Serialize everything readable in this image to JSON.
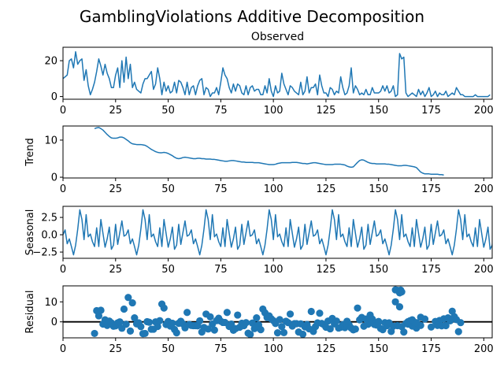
{
  "title": "GamblingViolations Additive Decomposition",
  "colors": {
    "series": "#1f77b4",
    "axes": "#000000",
    "background": "#ffffff"
  },
  "chart_data": [
    {
      "type": "line",
      "title": "Observed",
      "ylabel": "",
      "xlim": [
        0,
        204
      ],
      "ylim": [
        -1.5,
        27.5
      ],
      "xticks": [
        0,
        25,
        50,
        75,
        100,
        125,
        150,
        175,
        200
      ],
      "yticks": [
        0,
        20
      ],
      "series": [
        {
          "x_start": 0,
          "values": [
            10,
            11,
            12,
            20,
            21,
            16,
            25,
            18,
            20,
            21,
            9,
            15,
            6,
            1,
            4,
            8,
            14,
            21,
            17,
            12,
            18,
            13,
            10,
            5,
            5,
            12,
            16,
            5,
            20,
            8,
            22,
            10,
            18,
            5,
            8,
            4,
            3,
            2,
            7,
            10,
            10,
            12,
            14,
            4,
            7,
            16,
            10,
            1,
            8,
            3,
            6,
            2,
            3,
            8,
            2,
            9,
            8,
            5,
            1,
            8,
            1,
            5,
            6,
            1,
            6,
            9,
            10,
            1,
            5,
            4,
            0,
            2,
            2,
            5,
            1,
            8,
            16,
            12,
            10,
            5,
            2,
            7,
            3,
            7,
            6,
            2,
            1,
            6,
            1,
            5,
            6,
            3,
            4,
            4,
            1,
            1,
            6,
            2,
            10,
            3,
            0,
            6,
            2,
            3,
            13,
            7,
            4,
            1,
            6,
            5,
            3,
            2,
            1,
            8,
            1,
            3,
            11,
            2,
            5,
            5,
            7,
            1,
            12,
            6,
            2,
            2,
            0,
            5,
            4,
            1,
            3,
            2,
            11,
            5,
            1,
            2,
            6,
            16,
            2,
            6,
            4,
            1,
            2,
            1,
            4,
            1,
            1,
            5,
            2,
            2,
            2,
            3,
            6,
            3,
            6,
            2,
            3,
            6,
            0,
            1,
            24,
            21,
            22,
            2,
            0,
            1,
            2,
            1,
            0,
            4,
            1,
            3,
            0,
            2,
            5,
            0,
            1,
            3,
            0,
            2,
            1,
            1,
            3,
            0,
            1,
            2,
            1,
            5,
            3,
            1,
            1,
            0,
            0,
            0,
            0,
            0,
            1,
            0,
            0,
            0,
            0,
            0,
            0,
            1
          ]
        }
      ]
    },
    {
      "type": "line",
      "title": "",
      "ylabel": "Trend",
      "xlim": [
        0,
        204
      ],
      "ylim": [
        -0.2,
        13.8
      ],
      "xticks": [
        0,
        25,
        50,
        75,
        100,
        125,
        150,
        175,
        200
      ],
      "yticks": [
        0,
        10
      ],
      "series": [
        {
          "x_start": 15,
          "values": [
            13.1,
            13.3,
            13.4,
            13.1,
            12.7,
            12.1,
            11.5,
            11.0,
            10.6,
            10.5,
            10.5,
            10.6,
            10.8,
            10.8,
            10.6,
            10.2,
            9.8,
            9.3,
            9.0,
            8.9,
            8.8,
            8.8,
            8.8,
            8.7,
            8.6,
            8.3,
            7.9,
            7.5,
            7.2,
            6.9,
            6.7,
            6.6,
            6.6,
            6.7,
            6.6,
            6.4,
            6.1,
            5.8,
            5.4,
            5.1,
            5.0,
            5.1,
            5.3,
            5.4,
            5.3,
            5.2,
            5.1,
            5.0,
            5.0,
            5.1,
            5.1,
            5.0,
            5.0,
            4.9,
            4.9,
            4.9,
            4.8,
            4.8,
            4.7,
            4.6,
            4.5,
            4.4,
            4.3,
            4.3,
            4.4,
            4.5,
            4.5,
            4.4,
            4.3,
            4.2,
            4.1,
            4.1,
            4.0,
            4.0,
            4.0,
            4.0,
            3.9,
            3.9,
            3.9,
            3.8,
            3.7,
            3.6,
            3.5,
            3.4,
            3.4,
            3.4,
            3.5,
            3.7,
            3.8,
            3.9,
            3.9,
            3.9,
            3.9,
            3.9,
            4.0,
            4.0,
            4.0,
            3.9,
            3.8,
            3.7,
            3.7,
            3.6,
            3.7,
            3.8,
            3.9,
            3.9,
            3.8,
            3.7,
            3.6,
            3.5,
            3.4,
            3.4,
            3.4,
            3.4,
            3.5,
            3.5,
            3.5,
            3.5,
            3.4,
            3.3,
            3.0,
            2.8,
            2.7,
            2.8,
            3.4,
            4.0,
            4.5,
            4.7,
            4.6,
            4.3,
            4.0,
            3.8,
            3.7,
            3.7,
            3.6,
            3.6,
            3.6,
            3.6,
            3.6,
            3.5,
            3.5,
            3.4,
            3.3,
            3.2,
            3.1,
            3.1,
            3.1,
            3.2,
            3.2,
            3.1,
            3.0,
            2.9,
            2.8,
            2.6,
            2.0,
            1.4,
            1.1,
            0.9,
            0.9,
            0.9,
            0.8,
            0.8,
            0.8,
            0.8,
            0.7,
            0.7,
            0.6
          ]
        }
      ]
    },
    {
      "type": "line",
      "title": "",
      "ylabel": "Seasonal",
      "xlim": [
        0,
        204
      ],
      "ylim": [
        -3.4,
        4.1
      ],
      "xticks": [
        0,
        25,
        50,
        75,
        100,
        125,
        150,
        175,
        200
      ],
      "yticks": [
        -2.5,
        0.0,
        2.5
      ],
      "yticklabels": [
        "−2.5",
        "0.0",
        "2.5"
      ],
      "series": [
        {
          "x_start": 0,
          "period": 30,
          "values_first_period": [
            0.0,
            0.7,
            -1.3,
            -0.6,
            -1.7,
            -2.9,
            -1.5,
            0.8,
            3.6,
            2.2,
            -0.7,
            2.9,
            -0.3,
            0.1,
            -1.0,
            -1.7,
            1.0,
            -1.7,
            2.2,
            0.2,
            -1.8,
            -0.6,
            1.1,
            -2.1,
            -1.5,
            1.5,
            -1.4,
            0.3,
            2.0,
            -0.2
          ],
          "values": [
            0.0,
            0.7,
            -1.3,
            -0.6,
            -1.7,
            -2.9,
            -1.5,
            0.8,
            3.6,
            2.2,
            -0.7,
            2.9,
            -0.3,
            0.1,
            -1.0,
            -1.7,
            1.0,
            -1.7,
            2.2,
            0.2,
            -1.8,
            -0.6,
            1.1,
            -2.1,
            -1.5,
            1.5,
            -1.4,
            0.3,
            2.0,
            -0.2,
            0.0,
            0.7,
            -1.3,
            -0.6,
            -1.7,
            -2.9,
            -1.5,
            0.8,
            3.6,
            2.2,
            -0.7,
            2.9,
            -0.3,
            0.1,
            -1.0,
            -1.7,
            1.0,
            -1.7,
            2.2,
            0.2,
            -1.8,
            -0.6,
            1.1,
            -2.1,
            -1.5,
            1.5,
            -1.4,
            0.3,
            2.0,
            -0.2,
            0.0,
            0.7,
            -1.3,
            -0.6,
            -1.7,
            -2.9,
            -1.5,
            0.8,
            3.6,
            2.2,
            -0.7,
            2.9,
            -0.3,
            0.1,
            -1.0,
            -1.7,
            1.0,
            -1.7,
            2.2,
            0.2,
            -1.8,
            -0.6,
            1.1,
            -2.1,
            -1.5,
            1.5,
            -1.4,
            0.3,
            2.0,
            -0.2,
            0.0,
            0.7,
            -1.3,
            -0.6,
            -1.7,
            -2.9,
            -1.5,
            0.8,
            3.6,
            2.2,
            -0.7,
            2.9,
            -0.3,
            0.1,
            -1.0,
            -1.7,
            1.0,
            -1.7,
            2.2,
            0.2,
            -1.8,
            -0.6,
            1.1,
            -2.1,
            -1.5,
            1.5,
            -1.4,
            0.3,
            2.0,
            -0.2,
            0.0,
            0.7,
            -1.3,
            -0.6,
            -1.7,
            -2.9,
            -1.5,
            0.8,
            3.6,
            2.2,
            -0.7,
            2.9,
            -0.3,
            0.1,
            -1.0,
            -1.7,
            1.0,
            -1.7,
            2.2,
            0.2,
            -1.8,
            -0.6,
            1.1,
            -2.1,
            -1.5,
            1.5,
            -1.4,
            0.3,
            2.0,
            -0.2,
            0.0,
            0.7,
            -1.3,
            -0.6,
            -1.7,
            -2.9,
            -1.5,
            0.8,
            3.6,
            2.2,
            -0.7,
            2.9,
            -0.3,
            0.1,
            -1.0,
            -1.7,
            1.0,
            -1.7,
            2.2,
            0.2,
            -1.8,
            -0.6,
            1.1,
            -2.1,
            -1.5,
            1.5,
            -1.4,
            0.3,
            2.0,
            -0.2,
            0.0,
            0.7,
            -1.3,
            -0.6,
            -1.7,
            -2.9,
            -1.5,
            0.8,
            3.6,
            2.2,
            -0.7,
            2.9,
            -0.3,
            0.1,
            -1.0,
            -1.7,
            1.0,
            -1.7,
            2.2,
            0.2,
            -1.8,
            -0.6,
            1.1,
            -2.1,
            -1.5,
            1.5,
            -1.4,
            0.3,
            2.0,
            -0.2,
            0.0,
            0.7,
            -1.3,
            -0.6,
            -1.7
          ]
        }
      ]
    },
    {
      "type": "scatter",
      "title": "",
      "ylabel": "Residual",
      "xlim": [
        0,
        204
      ],
      "ylim": [
        -8,
        18
      ],
      "xticks": [
        0,
        25,
        50,
        75,
        100,
        125,
        150,
        175,
        200
      ],
      "yticks": [
        0,
        10
      ],
      "reference_line": 0,
      "series": [
        {
          "x_start": 15,
          "values": [
            -5.8,
            5.6,
            3.0,
            5.8,
            -1.1,
            1.0,
            -1.8,
            0.4,
            -0.5,
            -2.2,
            -2.0,
            -0.5,
            0.0,
            -3.2,
            6.4,
            -1.2,
            12.2,
            -4.6,
            9.5,
            2.0,
            -1.0,
            -0.5,
            -2.4,
            -5.9,
            -5.8,
            0.1,
            -0.2,
            -3.7,
            -3.7,
            0.0,
            -2.3,
            0.6,
            8.9,
            6.9,
            -1.3,
            0.2,
            -2.1,
            -0.7,
            -3.8,
            -5.5,
            -0.7,
            0.3,
            -1.0,
            -3.0,
            4.7,
            -1.3,
            -1.8,
            -1.9,
            -1.9,
            -2.0,
            0.5,
            -5.1,
            -2.8,
            3.9,
            -3.6,
            2.5,
            -1.1,
            -4.1,
            0.6,
            1.8,
            0.3,
            -0.3,
            -0.3,
            4.7,
            -2.3,
            -1.1,
            -4.2,
            -3.4,
            3.4,
            -2.7,
            -0.7,
            -1.9,
            -0.4,
            -5.7,
            -6.3,
            -0.6,
            -3.4,
            2.0,
            -1.5,
            -3.9,
            6.4,
            4.5,
            2.2,
            3.0,
            1.5,
            0.6,
            -0.8,
            -5.5,
            1.1,
            -2.4,
            -5.4,
            0.3,
            -0.4,
            3.9,
            -2.1,
            -0.9,
            -0.9,
            -5.1,
            -1.0,
            -6.2,
            -2.5,
            -1.3,
            -3.5,
            5.2,
            -4.8,
            -2.4,
            -0.5,
            4.3,
            -0.8,
            -1.4,
            -2.7,
            0.4,
            -3.5,
            1.7,
            -1.0,
            0.4,
            -3.1,
            -2.7,
            -1.4,
            -2.9,
            -1.8,
            -1.5,
            -3.1,
            -4.0,
            -3.6,
            6.9,
            1.0,
            2.2,
            -2.2,
            1.4,
            -1.2,
            3.4,
            1.4,
            -1.3,
            -1.6,
            0.2,
            -3.3,
            -3.9,
            -0.4,
            -1.9,
            -0.5,
            -4.8,
            -2.2,
            10.0,
            -1.9,
            7.5,
            -2.4,
            -5.1,
            -0.8,
            0.1,
            0.6,
            -2.1,
            -0.4,
            -3.1,
            -1.5,
            2.3
          ]
        },
        {
          "points": [
            [
              158,
              16.0
            ],
            [
              159,
              15.8
            ],
            [
              160,
              14.5
            ],
            [
              160.5,
              15.9
            ],
            [
              161,
              15.0
            ],
            [
              179,
              0.7
            ],
            [
              180,
              -2.0
            ],
            [
              181,
              1.5
            ],
            [
              182,
              -1.9
            ],
            [
              183,
              2.0
            ],
            [
              184,
              0.5
            ],
            [
              185,
              5.3
            ],
            [
              186,
              2.6
            ],
            [
              187,
              1.1
            ],
            [
              188,
              -4.9
            ],
            [
              189,
              -0.4
            ],
            [
              135,
              0.3
            ],
            [
              150,
              -0.1
            ],
            [
              146,
              1.6
            ],
            [
              170,
              -1.8
            ],
            [
              172,
              1.4
            ],
            [
              175,
              -2.6
            ],
            [
              177,
              0.2
            ],
            [
              178,
              -1.8
            ],
            [
              164,
              -1.1
            ],
            [
              166,
              1.0
            ],
            [
              168,
              -0.4
            ]
          ]
        }
      ]
    }
  ]
}
